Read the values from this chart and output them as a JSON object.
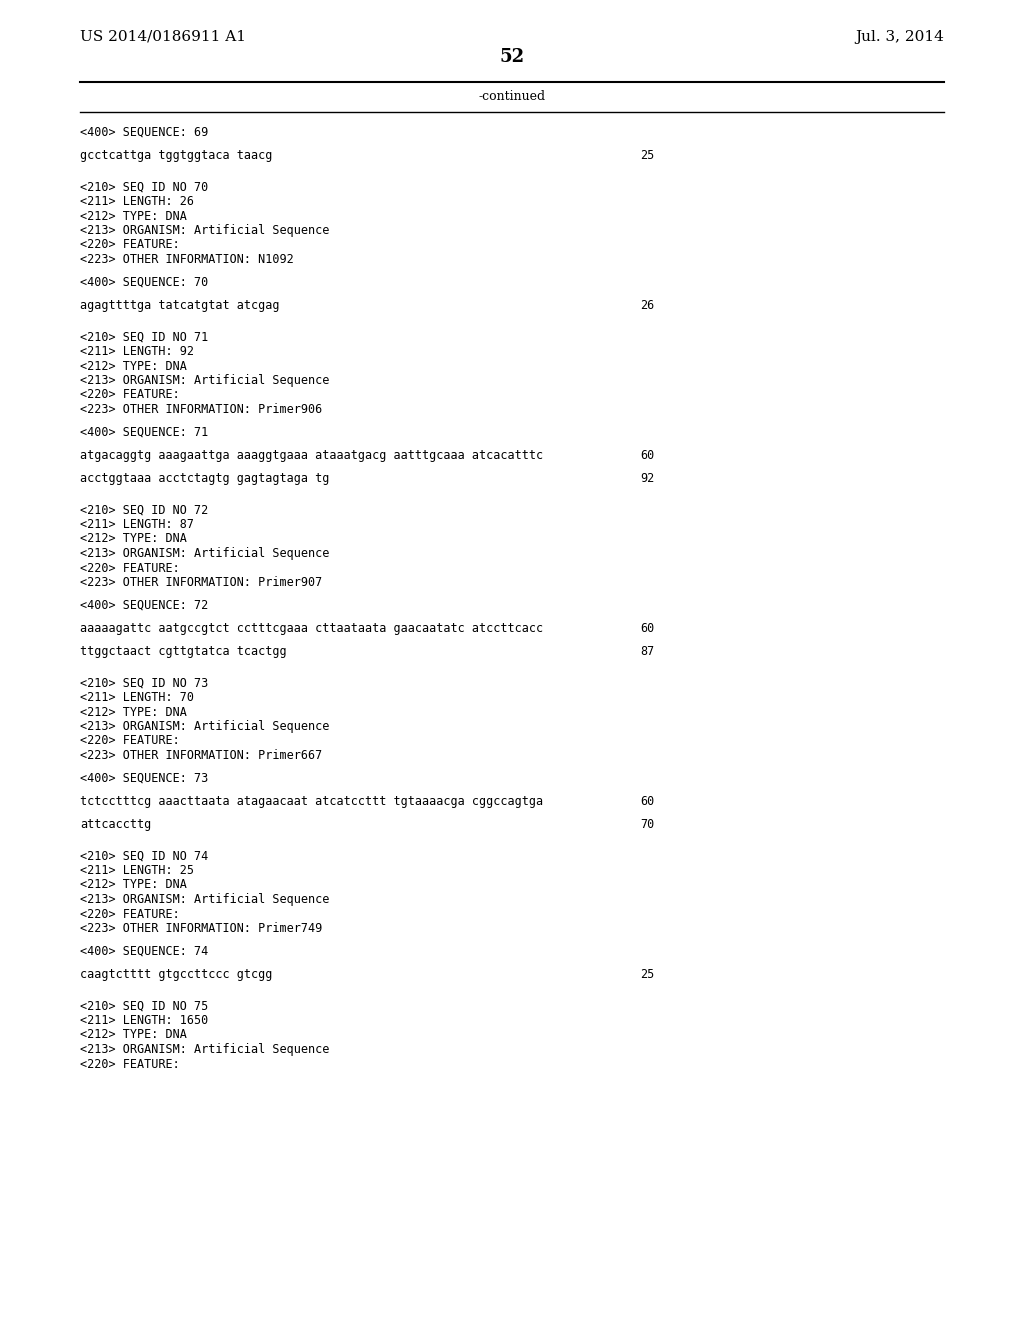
{
  "header_left": "US 2014/0186911 A1",
  "header_right": "Jul. 3, 2014",
  "page_number": "52",
  "continued_text": "-continued",
  "background_color": "#ffffff",
  "text_color": "#000000",
  "font_size_header": 11,
  "font_size_page": 13,
  "font_size_body": 9,
  "font_size_mono": 8.5,
  "lines": [
    {
      "text": "<400> SEQUENCE: 69",
      "blank": false
    },
    {
      "text": "",
      "blank": true
    },
    {
      "text": "gcctcattga tggtggtaca taacg",
      "blank": false,
      "num": "25"
    },
    {
      "text": "",
      "blank": true
    },
    {
      "text": "",
      "blank": true
    },
    {
      "text": "<210> SEQ ID NO 70",
      "blank": false
    },
    {
      "text": "<211> LENGTH: 26",
      "blank": false
    },
    {
      "text": "<212> TYPE: DNA",
      "blank": false
    },
    {
      "text": "<213> ORGANISM: Artificial Sequence",
      "blank": false
    },
    {
      "text": "<220> FEATURE:",
      "blank": false
    },
    {
      "text": "<223> OTHER INFORMATION: N1092",
      "blank": false
    },
    {
      "text": "",
      "blank": true
    },
    {
      "text": "<400> SEQUENCE: 70",
      "blank": false
    },
    {
      "text": "",
      "blank": true
    },
    {
      "text": "agagttttga tatcatgtat atcgag",
      "blank": false,
      "num": "26"
    },
    {
      "text": "",
      "blank": true
    },
    {
      "text": "",
      "blank": true
    },
    {
      "text": "<210> SEQ ID NO 71",
      "blank": false
    },
    {
      "text": "<211> LENGTH: 92",
      "blank": false
    },
    {
      "text": "<212> TYPE: DNA",
      "blank": false
    },
    {
      "text": "<213> ORGANISM: Artificial Sequence",
      "blank": false
    },
    {
      "text": "<220> FEATURE:",
      "blank": false
    },
    {
      "text": "<223> OTHER INFORMATION: Primer906",
      "blank": false
    },
    {
      "text": "",
      "blank": true
    },
    {
      "text": "<400> SEQUENCE: 71",
      "blank": false
    },
    {
      "text": "",
      "blank": true
    },
    {
      "text": "atgacaggtg aaagaattga aaaggtgaaa ataaatgacg aatttgcaaa atcacatttc",
      "blank": false,
      "num": "60"
    },
    {
      "text": "",
      "blank": true
    },
    {
      "text": "acctggtaaa acctctagtg gagtagtaga tg",
      "blank": false,
      "num": "92"
    },
    {
      "text": "",
      "blank": true
    },
    {
      "text": "",
      "blank": true
    },
    {
      "text": "<210> SEQ ID NO 72",
      "blank": false
    },
    {
      "text": "<211> LENGTH: 87",
      "blank": false
    },
    {
      "text": "<212> TYPE: DNA",
      "blank": false
    },
    {
      "text": "<213> ORGANISM: Artificial Sequence",
      "blank": false
    },
    {
      "text": "<220> FEATURE:",
      "blank": false
    },
    {
      "text": "<223> OTHER INFORMATION: Primer907",
      "blank": false
    },
    {
      "text": "",
      "blank": true
    },
    {
      "text": "<400> SEQUENCE: 72",
      "blank": false
    },
    {
      "text": "",
      "blank": true
    },
    {
      "text": "aaaaagattc aatgccgtct cctttcgaaa cttaataata gaacaatatc atccttcacc",
      "blank": false,
      "num": "60"
    },
    {
      "text": "",
      "blank": true
    },
    {
      "text": "ttggctaact cgttgtatca tcactgg",
      "blank": false,
      "num": "87"
    },
    {
      "text": "",
      "blank": true
    },
    {
      "text": "",
      "blank": true
    },
    {
      "text": "<210> SEQ ID NO 73",
      "blank": false
    },
    {
      "text": "<211> LENGTH: 70",
      "blank": false
    },
    {
      "text": "<212> TYPE: DNA",
      "blank": false
    },
    {
      "text": "<213> ORGANISM: Artificial Sequence",
      "blank": false
    },
    {
      "text": "<220> FEATURE:",
      "blank": false
    },
    {
      "text": "<223> OTHER INFORMATION: Primer667",
      "blank": false
    },
    {
      "text": "",
      "blank": true
    },
    {
      "text": "<400> SEQUENCE: 73",
      "blank": false
    },
    {
      "text": "",
      "blank": true
    },
    {
      "text": "tctcctttcg aaacttaata atagaacaat atcatccttt tgtaaaacga cggccagtga",
      "blank": false,
      "num": "60"
    },
    {
      "text": "",
      "blank": true
    },
    {
      "text": "attcaccttg",
      "blank": false,
      "num": "70"
    },
    {
      "text": "",
      "blank": true
    },
    {
      "text": "",
      "blank": true
    },
    {
      "text": "<210> SEQ ID NO 74",
      "blank": false
    },
    {
      "text": "<211> LENGTH: 25",
      "blank": false
    },
    {
      "text": "<212> TYPE: DNA",
      "blank": false
    },
    {
      "text": "<213> ORGANISM: Artificial Sequence",
      "blank": false
    },
    {
      "text": "<220> FEATURE:",
      "blank": false
    },
    {
      "text": "<223> OTHER INFORMATION: Primer749",
      "blank": false
    },
    {
      "text": "",
      "blank": true
    },
    {
      "text": "<400> SEQUENCE: 74",
      "blank": false
    },
    {
      "text": "",
      "blank": true
    },
    {
      "text": "caagtctttt gtgccttccc gtcgg",
      "blank": false,
      "num": "25"
    },
    {
      "text": "",
      "blank": true
    },
    {
      "text": "",
      "blank": true
    },
    {
      "text": "<210> SEQ ID NO 75",
      "blank": false
    },
    {
      "text": "<211> LENGTH: 1650",
      "blank": false
    },
    {
      "text": "<212> TYPE: DNA",
      "blank": false
    },
    {
      "text": "<213> ORGANISM: Artificial Sequence",
      "blank": false
    },
    {
      "text": "<220> FEATURE:",
      "blank": false
    }
  ]
}
